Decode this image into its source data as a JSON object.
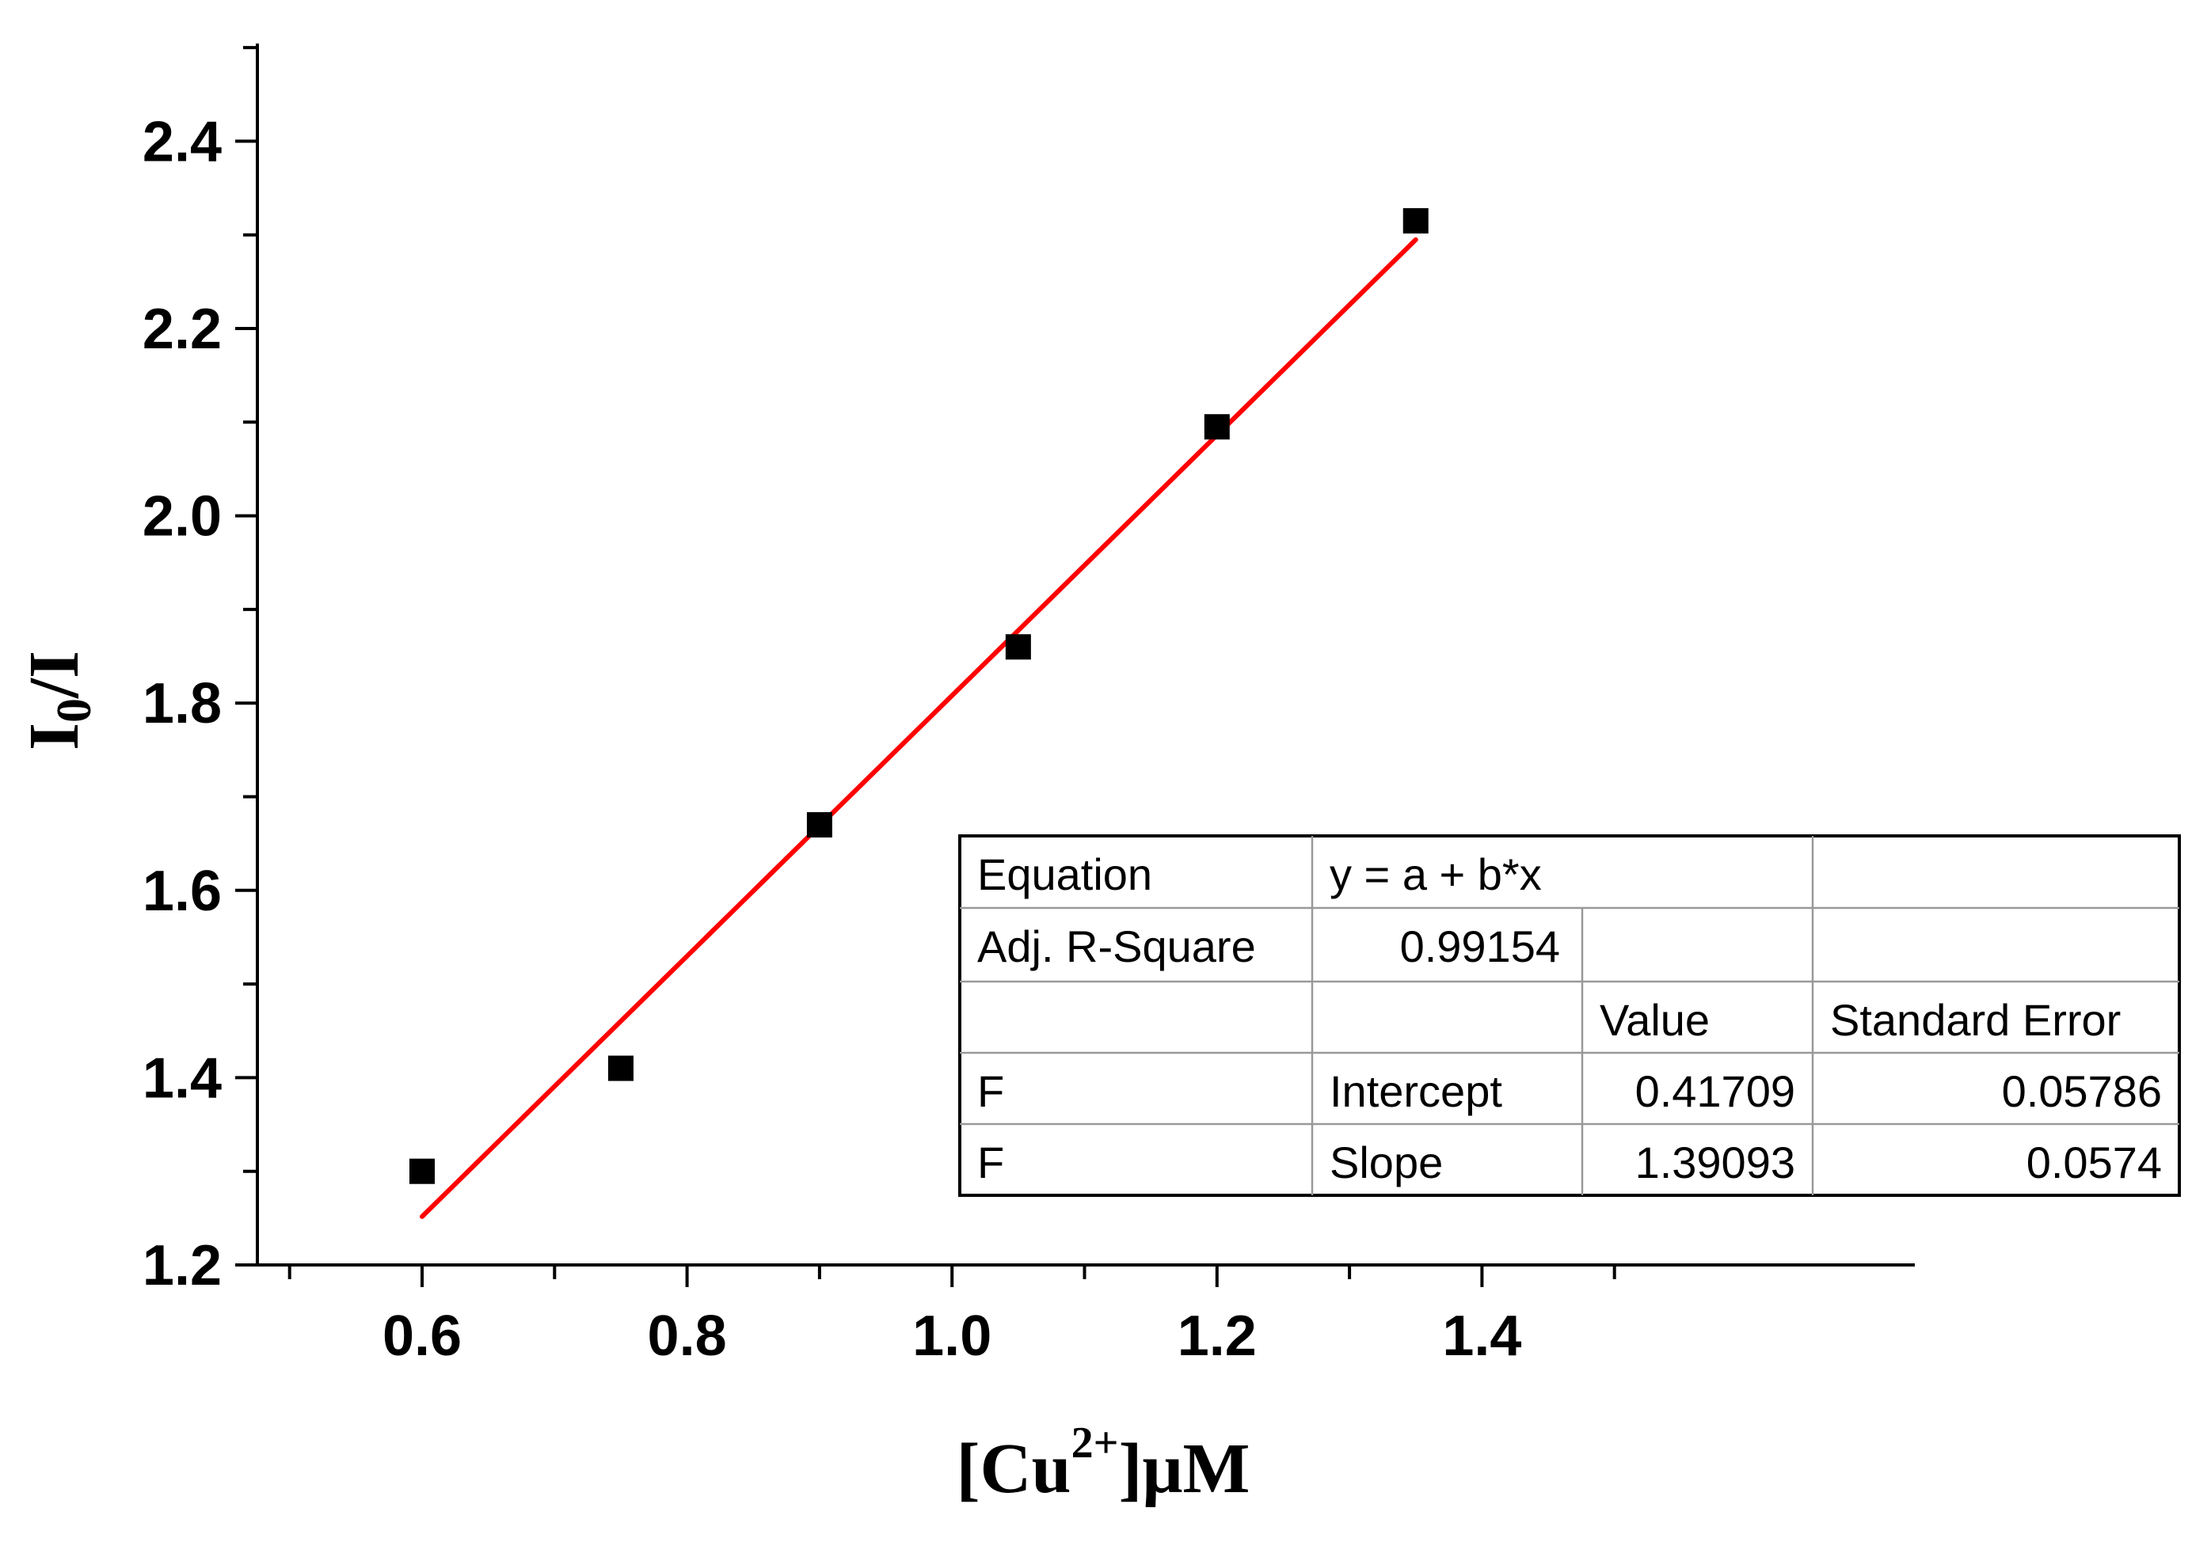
{
  "chart_data": {
    "type": "scatter",
    "title": "",
    "xlabel": {
      "main": "[Cu",
      "sup": "2+",
      "end": "]μM"
    },
    "ylabel": {
      "main": "I",
      "sub": "0",
      "end": "/I"
    },
    "xlim": [
      0.5,
      1.5
    ],
    "ylim": [
      1.2,
      2.5
    ],
    "x_ticks": [
      "0.6",
      "0.8",
      "1.0",
      "1.2",
      "1.4"
    ],
    "y_ticks": [
      "1.2",
      "1.4",
      "1.6",
      "1.8",
      "2.0",
      "2.2",
      "2.4"
    ],
    "grid": false,
    "series": [
      {
        "marker": "square",
        "color": "#000000",
        "points": [
          {
            "x": 0.6,
            "y": 1.3
          },
          {
            "x": 0.75,
            "y": 1.41
          },
          {
            "x": 0.9,
            "y": 1.67
          },
          {
            "x": 1.05,
            "y": 1.86
          },
          {
            "x": 1.2,
            "y": 2.095
          },
          {
            "x": 1.35,
            "y": 2.315
          }
        ]
      }
    ],
    "fit_line": {
      "color": "#ff0000",
      "intercept": 0.41709,
      "slope": 1.39093,
      "x_range": [
        0.6,
        1.35
      ]
    },
    "stats_table": {
      "placement": "bottom-right",
      "rows": [
        [
          "Equation",
          "y = a + b*x",
          "",
          ""
        ],
        [
          "Adj. R-Square",
          "0.99154",
          "",
          ""
        ],
        [
          "",
          "",
          "Value",
          "Standard Error"
        ],
        [
          "F",
          "Intercept",
          "0.41709",
          "0.05786"
        ],
        [
          "F",
          "Slope",
          "1.39093",
          "0.0574"
        ]
      ]
    }
  }
}
